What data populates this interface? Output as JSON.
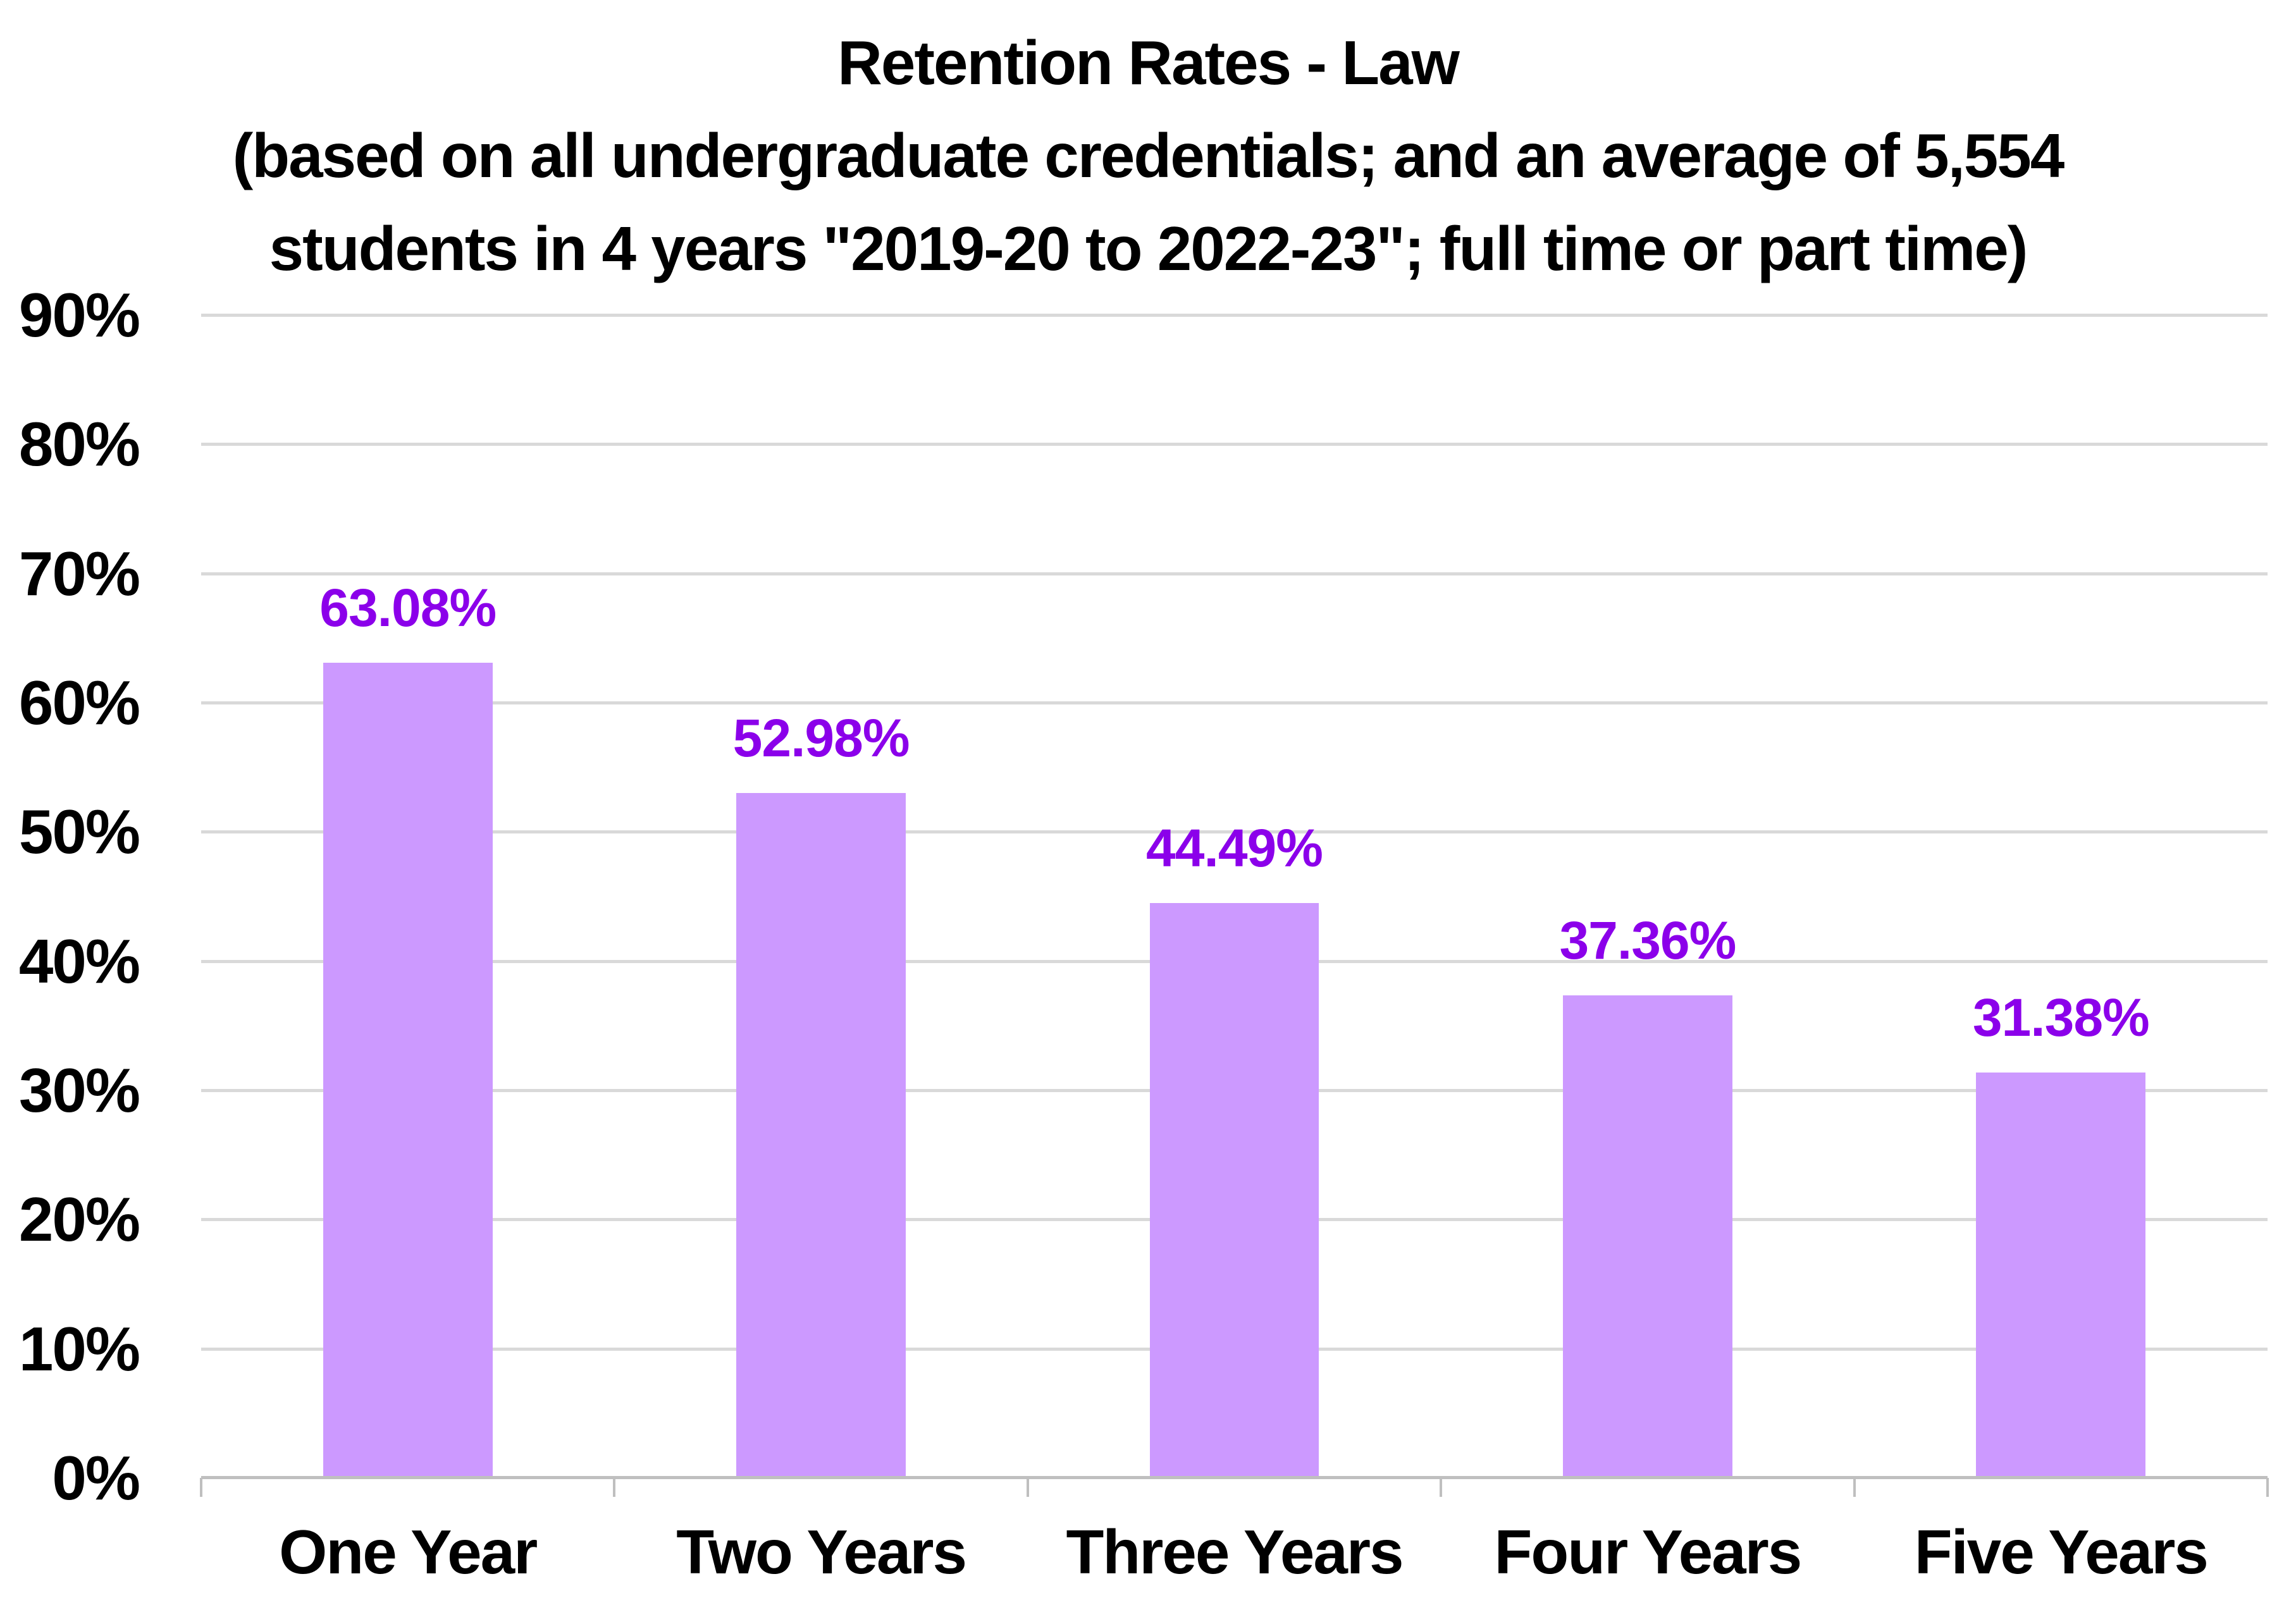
{
  "chart_data": {
    "type": "bar",
    "title_lines": [
      "Retention Rates - Law",
      "(based on all undergraduate credentials; and an average of 5,554",
      "students in 4 years \"2019-20 to 2022-23\"; full time or part time)"
    ],
    "categories": [
      "One Year",
      "Two Years",
      "Three Years",
      "Four Years",
      "Five Years"
    ],
    "values": [
      63.08,
      52.98,
      44.49,
      37.36,
      31.38
    ],
    "value_labels": [
      "63.08%",
      "52.98%",
      "44.49%",
      "37.36%",
      "31.38%"
    ],
    "y_tick_labels": [
      "90%",
      "80%",
      "70%",
      "60%",
      "50%",
      "40%",
      "30%",
      "20%",
      "10%",
      "0%"
    ],
    "y_tick_values": [
      90,
      80,
      70,
      60,
      50,
      40,
      30,
      20,
      10,
      0
    ],
    "ylim": [
      0,
      90
    ],
    "xlabel": "",
    "ylabel": "",
    "grid": true,
    "legend": false,
    "colors": {
      "bar_fill": "#CC99FF",
      "value_label": "#8B00EA",
      "gridline": "#D9D9D9",
      "axis_line": "#BFBFBF",
      "text": "#000000",
      "background": "#FFFFFF"
    }
  }
}
